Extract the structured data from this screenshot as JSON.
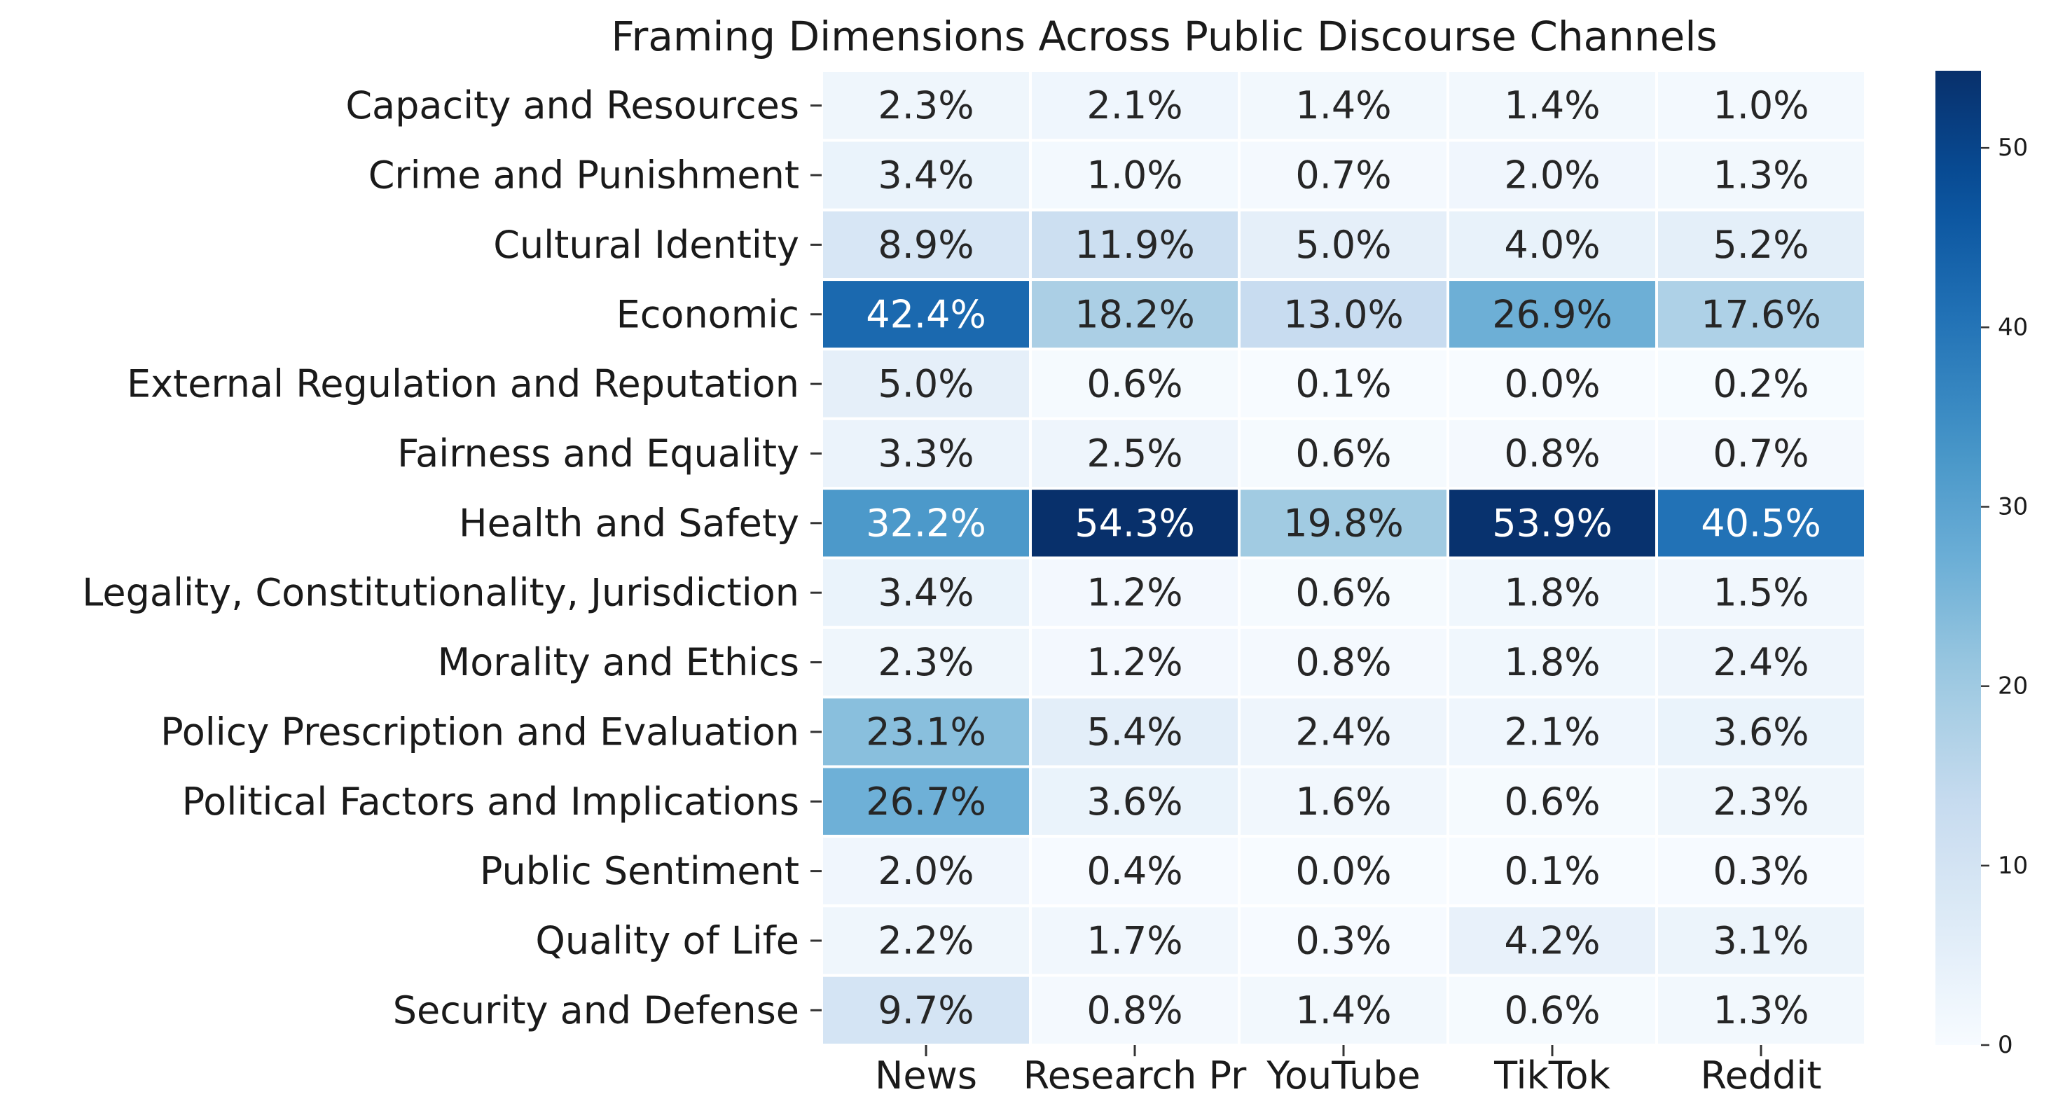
{
  "chart_data": {
    "type": "heatmap",
    "title": "Framing Dimensions Across Public Discourse Channels",
    "xlabel": "",
    "ylabel": "",
    "columns": [
      "News",
      "Research Pr",
      "YouTube",
      "TikTok",
      "Reddit"
    ],
    "rows": [
      "Capacity and Resources",
      "Crime and Punishment",
      "Cultural Identity",
      "Economic",
      "External Regulation and Reputation",
      "Fairness and Equality",
      "Health and Safety",
      "Legality, Constitutionality, Jurisdiction",
      "Morality and Ethics",
      "Policy Prescription and Evaluation",
      "Political Factors and Implications",
      "Public Sentiment",
      "Quality of Life",
      "Security and Defense"
    ],
    "values": [
      [
        2.3,
        2.1,
        1.4,
        1.4,
        1.0
      ],
      [
        3.4,
        1.0,
        0.7,
        2.0,
        1.3
      ],
      [
        8.9,
        11.9,
        5.0,
        4.0,
        5.2
      ],
      [
        42.4,
        18.2,
        13.0,
        26.9,
        17.6
      ],
      [
        5.0,
        0.6,
        0.1,
        0.0,
        0.2
      ],
      [
        3.3,
        2.5,
        0.6,
        0.8,
        0.7
      ],
      [
        32.2,
        54.3,
        19.8,
        53.9,
        40.5
      ],
      [
        3.4,
        1.2,
        0.6,
        1.8,
        1.5
      ],
      [
        2.3,
        1.2,
        0.8,
        1.8,
        2.4
      ],
      [
        23.1,
        5.4,
        2.4,
        2.1,
        3.6
      ],
      [
        26.7,
        3.6,
        1.6,
        0.6,
        2.3
      ],
      [
        2.0,
        0.4,
        0.0,
        0.1,
        0.3
      ],
      [
        2.2,
        1.7,
        0.3,
        4.2,
        3.1
      ],
      [
        9.7,
        0.8,
        1.4,
        0.6,
        1.3
      ]
    ],
    "cell_labels": [
      [
        "2.3%",
        "2.1%",
        "1.4%",
        "1.4%",
        "1.0%"
      ],
      [
        "3.4%",
        "1.0%",
        "0.7%",
        "2.0%",
        "1.3%"
      ],
      [
        "8.9%",
        "11.9%",
        "5.0%",
        "4.0%",
        "5.2%"
      ],
      [
        "42.4%",
        "18.2%",
        "13.0%",
        "26.9%",
        "17.6%"
      ],
      [
        "5.0%",
        "0.6%",
        "0.1%",
        "0.0%",
        "0.2%"
      ],
      [
        "3.3%",
        "2.5%",
        "0.6%",
        "0.8%",
        "0.7%"
      ],
      [
        "32.2%",
        "54.3%",
        "19.8%",
        "53.9%",
        "40.5%"
      ],
      [
        "3.4%",
        "1.2%",
        "0.6%",
        "1.8%",
        "1.5%"
      ],
      [
        "2.3%",
        "1.2%",
        "0.8%",
        "1.8%",
        "2.4%"
      ],
      [
        "23.1%",
        "5.4%",
        "2.4%",
        "2.1%",
        "3.6%"
      ],
      [
        "26.7%",
        "3.6%",
        "1.6%",
        "0.6%",
        "2.3%"
      ],
      [
        "2.0%",
        "0.4%",
        "0.0%",
        "0.1%",
        "0.3%"
      ],
      [
        "2.2%",
        "1.7%",
        "0.3%",
        "4.2%",
        "3.1%"
      ],
      [
        "9.7%",
        "0.8%",
        "1.4%",
        "0.6%",
        "1.3%"
      ]
    ],
    "colormap": "Blues",
    "vmin": 0,
    "vmax": 54.3,
    "colorbar": {
      "ticks": [
        0,
        10,
        20,
        30,
        40,
        50
      ],
      "tick_labels": [
        "0",
        "10",
        "20",
        "30",
        "40",
        "50"
      ]
    },
    "grid": false,
    "legend": "none"
  }
}
